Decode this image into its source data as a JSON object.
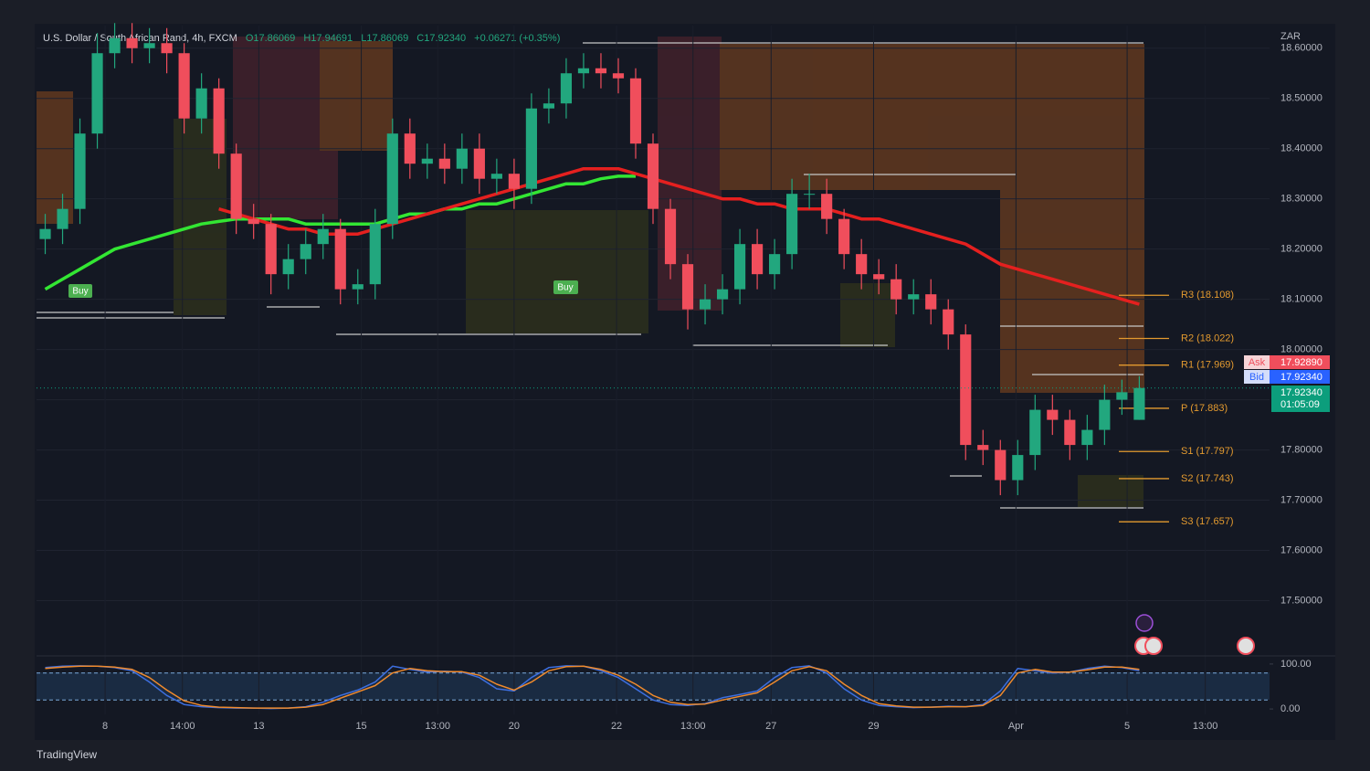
{
  "header": {
    "symbol": "U.S. Dollar / South African Rand, 4h, FXCM",
    "open": "O17.86069",
    "high": "H17.94691",
    "low": "L17.86069",
    "close": "C17.92340",
    "change": "+0.06271 (+0.35%)"
  },
  "currency": "ZAR",
  "quote": {
    "ask_label": "Ask",
    "ask": "17.92890",
    "bid_label": "Bid",
    "bid": "17.92340",
    "last": "17.92340",
    "countdown": "01:05:09"
  },
  "signals": [
    "Buy",
    "Buy"
  ],
  "brand": "TradingView",
  "chart_data": [
    {
      "type": "candlestick",
      "up_color": "#22a77e",
      "down_color": "#f04e5c",
      "grid": true,
      "open": [
        18.22,
        18.24,
        18.28,
        18.43,
        18.59,
        18.62,
        18.6,
        18.61,
        18.59,
        18.46,
        18.52,
        18.39,
        18.26,
        18.25,
        18.15,
        18.18,
        18.21,
        18.24,
        18.12,
        18.13,
        18.25,
        18.43,
        18.37,
        18.38,
        18.36,
        18.4,
        18.34,
        18.35,
        18.32,
        18.48,
        18.49,
        18.55,
        18.56,
        18.55,
        18.54,
        18.41,
        18.28,
        18.17,
        18.08,
        18.1,
        18.12,
        18.21,
        18.15,
        18.19,
        18.31,
        18.31,
        18.26,
        18.19,
        18.15,
        18.14,
        18.1,
        18.11,
        18.08,
        18.03,
        17.81,
        17.8,
        17.74,
        17.79,
        17.88,
        17.86,
        17.81,
        17.84,
        17.9,
        17.86
      ],
      "high": [
        18.27,
        18.31,
        18.46,
        18.63,
        18.65,
        18.65,
        18.64,
        18.64,
        18.61,
        18.55,
        18.54,
        18.41,
        18.29,
        18.27,
        18.21,
        18.24,
        18.27,
        18.26,
        18.16,
        18.28,
        18.46,
        18.46,
        18.41,
        18.41,
        18.43,
        18.43,
        18.38,
        18.38,
        18.51,
        18.52,
        18.58,
        18.59,
        18.59,
        18.58,
        18.56,
        18.43,
        18.3,
        18.19,
        18.13,
        18.15,
        18.24,
        18.24,
        18.22,
        18.34,
        18.35,
        18.34,
        18.28,
        18.22,
        18.18,
        18.17,
        18.14,
        18.14,
        18.1,
        18.05,
        17.84,
        17.82,
        17.82,
        17.91,
        17.91,
        17.88,
        17.87,
        17.93,
        17.94,
        17.947
      ],
      "low": [
        18.19,
        18.21,
        18.25,
        18.4,
        18.56,
        18.57,
        18.57,
        18.55,
        18.43,
        18.43,
        18.36,
        18.23,
        18.22,
        18.11,
        18.12,
        18.15,
        18.18,
        18.09,
        18.09,
        18.1,
        18.22,
        18.34,
        18.34,
        18.33,
        18.33,
        18.31,
        18.31,
        18.28,
        18.29,
        18.45,
        18.46,
        18.52,
        18.52,
        18.51,
        18.38,
        18.25,
        18.14,
        18.04,
        18.05,
        18.07,
        18.09,
        18.12,
        18.12,
        18.16,
        18.28,
        18.23,
        18.16,
        18.12,
        18.11,
        18.07,
        18.07,
        18.05,
        18.0,
        17.78,
        17.77,
        17.71,
        17.71,
        17.76,
        17.83,
        17.78,
        17.78,
        17.81,
        17.87,
        17.86
      ],
      "close": [
        18.24,
        18.28,
        18.43,
        18.59,
        18.62,
        18.6,
        18.61,
        18.59,
        18.46,
        18.52,
        18.39,
        18.26,
        18.25,
        18.15,
        18.18,
        18.21,
        18.24,
        18.12,
        18.13,
        18.25,
        18.43,
        18.37,
        18.38,
        18.36,
        18.4,
        18.34,
        18.35,
        18.32,
        18.48,
        18.49,
        18.55,
        18.56,
        18.55,
        18.54,
        18.41,
        18.28,
        18.17,
        18.08,
        18.1,
        18.12,
        18.21,
        18.15,
        18.19,
        18.31,
        18.31,
        18.26,
        18.19,
        18.15,
        18.14,
        18.1,
        18.11,
        18.08,
        18.03,
        17.81,
        17.8,
        17.74,
        17.79,
        17.88,
        17.86,
        17.81,
        17.84,
        17.9,
        17.915,
        17.9234
      ],
      "overlays": [
        {
          "color": "#33e633",
          "values": [
            18.12,
            18.14,
            18.16,
            18.18,
            18.2,
            18.21,
            18.22,
            18.23,
            18.24,
            18.25,
            18.255,
            18.26,
            18.26,
            18.26,
            18.26,
            18.25,
            18.25,
            18.25,
            18.25,
            18.25,
            18.26,
            18.27,
            18.27,
            18.28,
            18.28,
            18.29,
            18.29,
            18.3,
            18.31,
            18.32,
            18.33,
            18.33,
            18.34,
            18.345,
            18.345,
            null,
            null,
            null,
            null,
            null,
            null,
            null,
            null,
            null,
            null,
            null,
            null,
            null,
            null,
            null,
            null,
            null,
            null,
            null,
            null,
            null,
            null,
            null,
            null,
            null,
            null,
            null,
            null,
            null
          ]
        },
        {
          "color": "#e5201f",
          "values": [
            null,
            null,
            null,
            null,
            null,
            null,
            null,
            null,
            null,
            null,
            18.28,
            18.27,
            18.26,
            18.25,
            18.24,
            18.24,
            18.23,
            18.23,
            18.23,
            18.24,
            18.25,
            18.26,
            18.27,
            18.28,
            18.29,
            18.3,
            18.31,
            18.32,
            18.33,
            18.34,
            18.35,
            18.36,
            18.36,
            18.36,
            18.35,
            18.34,
            18.33,
            18.32,
            18.31,
            18.3,
            18.3,
            18.29,
            18.29,
            18.28,
            18.28,
            18.28,
            18.27,
            18.26,
            18.26,
            18.25,
            18.24,
            18.23,
            18.22,
            18.21,
            18.19,
            18.17,
            18.16,
            18.15,
            18.14,
            18.13,
            18.12,
            18.11,
            18.1,
            18.09
          ]
        }
      ],
      "pivots": [
        {
          "label": "R3 (18.108)",
          "value": 18.108
        },
        {
          "label": "R2 (18.022)",
          "value": 18.022
        },
        {
          "label": "R1 (17.969)",
          "value": 17.969
        },
        {
          "label": "P (17.883)",
          "value": 17.883
        },
        {
          "label": "S1 (17.797)",
          "value": 17.797
        },
        {
          "label": "S2 (17.743)",
          "value": 17.743
        },
        {
          "label": "S3 (17.657)",
          "value": 17.657
        }
      ],
      "pivot_color": "#e39a2f",
      "ylim": [
        17.39,
        18.645
      ],
      "yticks": [
        {
          "value": 17.5,
          "label": "17.50000"
        },
        {
          "value": 17.6,
          "label": "17.60000"
        },
        {
          "value": 17.7,
          "label": "17.70000"
        },
        {
          "value": 17.8,
          "label": "17.80000"
        },
        {
          "value": 17.9,
          "label": "17.90000"
        },
        {
          "value": 18.0,
          "label": "18.00000"
        },
        {
          "value": 18.1,
          "label": "18.10000"
        },
        {
          "value": 18.2,
          "label": "18.20000"
        },
        {
          "value": 18.3,
          "label": "18.30000"
        },
        {
          "value": 18.4,
          "label": "18.40000"
        },
        {
          "value": 18.5,
          "label": "18.50000"
        },
        {
          "value": 18.6,
          "label": "18.60000"
        }
      ],
      "xlim": [
        0,
        71
      ],
      "xticks": [
        {
          "value": 3.95,
          "label": "8"
        },
        {
          "value": 8.4,
          "label": "14:00"
        },
        {
          "value": 12.8,
          "label": "13"
        },
        {
          "value": 18.7,
          "label": "15"
        },
        {
          "value": 23.1,
          "label": "13:00"
        },
        {
          "value": 27.5,
          "label": "20"
        },
        {
          "value": 33.4,
          "label": "22"
        },
        {
          "value": 37.8,
          "label": "13:00"
        },
        {
          "value": 42.3,
          "label": "27"
        },
        {
          "value": 48.2,
          "label": "29"
        },
        {
          "value": 56.4,
          "label": "Apr"
        },
        {
          "value": 62.8,
          "label": "5"
        },
        {
          "value": 67.3,
          "label": "13:00"
        }
      ]
    },
    {
      "type": "line",
      "band": [
        80,
        20
      ],
      "band_color": "#7aa7d8",
      "series": [
        {
          "color": "#3d6fe0",
          "values": [
            92,
            95,
            96,
            95,
            92,
            85,
            60,
            30,
            10,
            5,
            3,
            2,
            2,
            1,
            2,
            5,
            15,
            30,
            42,
            60,
            95,
            88,
            82,
            84,
            82,
            70,
            45,
            40,
            70,
            92,
            96,
            95,
            85,
            70,
            45,
            20,
            10,
            8,
            12,
            25,
            32,
            40,
            70,
            92,
            96,
            80,
            45,
            20,
            8,
            5,
            3,
            4,
            6,
            5,
            10,
            40,
            90,
            85,
            80,
            82,
            90,
            95,
            92,
            85
          ]
        },
        {
          "color": "#f08a2c",
          "values": [
            90,
            93,
            95,
            95,
            93,
            88,
            70,
            42,
            18,
            8,
            4,
            3,
            2,
            2,
            2,
            4,
            10,
            24,
            38,
            52,
            80,
            90,
            85,
            83,
            83,
            75,
            55,
            42,
            60,
            85,
            94,
            95,
            88,
            75,
            55,
            30,
            15,
            10,
            11,
            20,
            28,
            36,
            60,
            85,
            94,
            85,
            55,
            30,
            12,
            7,
            4,
            4,
            5,
            5,
            8,
            30,
            80,
            88,
            82,
            82,
            87,
            93,
            93,
            88
          ]
        }
      ],
      "ylim": [
        -12,
        114
      ],
      "yticks": [
        {
          "value": 100,
          "label": "100.00"
        },
        {
          "value": 0,
          "label": "0.00"
        }
      ]
    }
  ]
}
